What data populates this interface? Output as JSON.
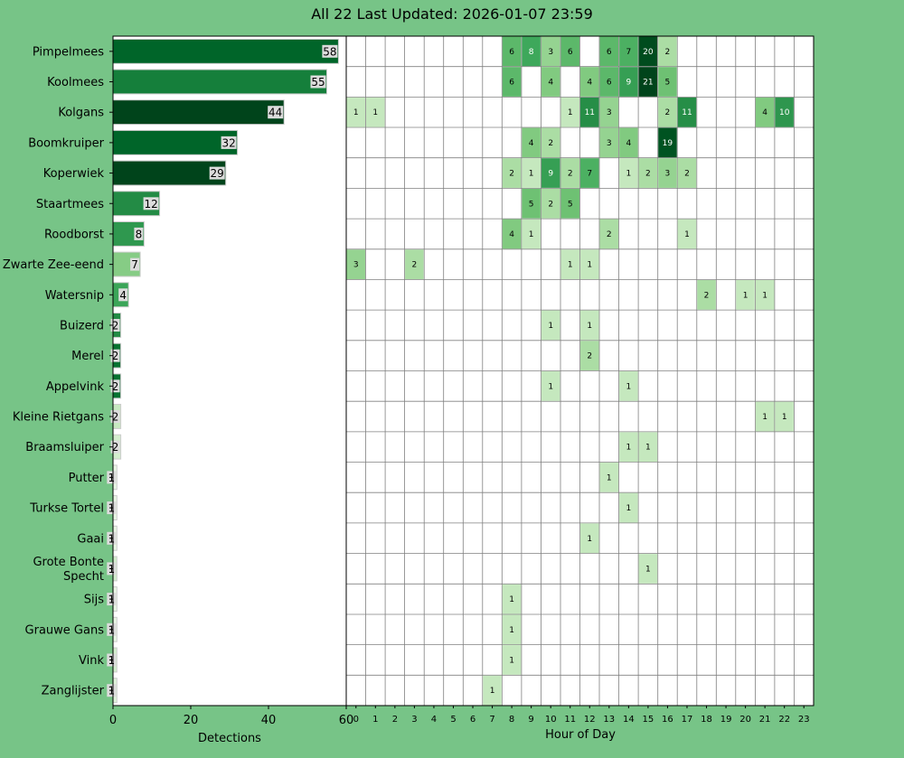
{
  "title": "All 22 Last Updated: 2026-01-07 23:59",
  "colors": {
    "background": "#77c487",
    "highlight_hour": "#ffff00",
    "grid": "#808080"
  },
  "chart_data": [
    {
      "type": "bar",
      "orientation": "horizontal",
      "categories": [
        "Pimpelmees",
        "Koolmees",
        "Kolgans",
        "Boomkruiper",
        "Koperwiek",
        "Staartmees",
        "Roodborst",
        "Zwarte Zee-eend",
        "Watersnip",
        "Buizerd",
        "Merel",
        "Appelvink",
        "Kleine Rietgans",
        "Braamsluiper",
        "Putter",
        "Turkse Tortel",
        "Gaai",
        "Grote Bonte\nSpecht",
        "Sijs",
        "Grauwe Gans",
        "Vink",
        "Zanglijster"
      ],
      "values": [
        58,
        55,
        44,
        32,
        29,
        12,
        8,
        7,
        4,
        2,
        2,
        2,
        2,
        2,
        1,
        1,
        1,
        1,
        1,
        1,
        1,
        1
      ],
      "xlabel": "Detections",
      "xlim": [
        0,
        60
      ],
      "xticks": [
        0,
        20,
        40,
        60
      ]
    },
    {
      "type": "heatmap",
      "xlabel": "Hour of Day",
      "x": [
        0,
        1,
        2,
        3,
        4,
        5,
        6,
        7,
        8,
        9,
        10,
        11,
        12,
        13,
        14,
        15,
        16,
        17,
        18,
        19,
        20,
        21,
        22,
        23
      ],
      "highlight_hour": 23,
      "rows": [
        {
          "species": "Pimpelmees",
          "cells": [
            [
              8,
              6
            ],
            [
              9,
              8
            ],
            [
              10,
              3
            ],
            [
              11,
              6
            ],
            [
              13,
              6
            ],
            [
              14,
              7
            ],
            [
              15,
              20
            ],
            [
              16,
              2
            ]
          ]
        },
        {
          "species": "Koolmees",
          "cells": [
            [
              8,
              6
            ],
            [
              10,
              4
            ],
            [
              12,
              4
            ],
            [
              13,
              6
            ],
            [
              14,
              9
            ],
            [
              15,
              21
            ],
            [
              16,
              5
            ]
          ]
        },
        {
          "species": "Kolgans",
          "cells": [
            [
              0,
              1
            ],
            [
              1,
              1
            ],
            [
              11,
              1
            ],
            [
              12,
              11
            ],
            [
              13,
              3
            ],
            [
              16,
              2
            ],
            [
              17,
              11
            ],
            [
              21,
              4
            ],
            [
              22,
              10
            ]
          ]
        },
        {
          "species": "Boomkruiper",
          "cells": [
            [
              9,
              4
            ],
            [
              10,
              2
            ],
            [
              13,
              3
            ],
            [
              14,
              4
            ],
            [
              16,
              19
            ]
          ]
        },
        {
          "species": "Koperwiek",
          "cells": [
            [
              8,
              2
            ],
            [
              9,
              1
            ],
            [
              10,
              9
            ],
            [
              11,
              2
            ],
            [
              12,
              7
            ],
            [
              14,
              1
            ],
            [
              15,
              2
            ],
            [
              16,
              3
            ],
            [
              17,
              2
            ]
          ]
        },
        {
          "species": "Staartmees",
          "cells": [
            [
              9,
              5
            ],
            [
              10,
              2
            ],
            [
              11,
              5
            ]
          ]
        },
        {
          "species": "Roodborst",
          "cells": [
            [
              8,
              4
            ],
            [
              9,
              1
            ],
            [
              13,
              2
            ],
            [
              17,
              1
            ]
          ]
        },
        {
          "species": "Zwarte Zee-eend",
          "cells": [
            [
              0,
              3
            ],
            [
              3,
              2
            ],
            [
              11,
              1
            ],
            [
              12,
              1
            ]
          ]
        },
        {
          "species": "Watersnip",
          "cells": [
            [
              18,
              2
            ],
            [
              20,
              1
            ],
            [
              21,
              1
            ]
          ]
        },
        {
          "species": "Buizerd",
          "cells": [
            [
              10,
              1
            ],
            [
              12,
              1
            ]
          ]
        },
        {
          "species": "Merel",
          "cells": [
            [
              12,
              2
            ]
          ]
        },
        {
          "species": "Appelvink",
          "cells": [
            [
              10,
              1
            ],
            [
              14,
              1
            ]
          ]
        },
        {
          "species": "Kleine Rietgans",
          "cells": [
            [
              21,
              1
            ],
            [
              22,
              1
            ]
          ]
        },
        {
          "species": "Braamsluiper",
          "cells": [
            [
              14,
              1
            ],
            [
              15,
              1
            ]
          ]
        },
        {
          "species": "Putter",
          "cells": [
            [
              13,
              1
            ]
          ]
        },
        {
          "species": "Turkse Tortel",
          "cells": [
            [
              14,
              1
            ]
          ]
        },
        {
          "species": "Gaai",
          "cells": [
            [
              12,
              1
            ]
          ]
        },
        {
          "species": "Grote Bonte Specht",
          "cells": [
            [
              15,
              1
            ]
          ]
        },
        {
          "species": "Sijs",
          "cells": [
            [
              8,
              1
            ]
          ]
        },
        {
          "species": "Grauwe Gans",
          "cells": [
            [
              8,
              1
            ]
          ]
        },
        {
          "species": "Vink",
          "cells": [
            [
              8,
              1
            ]
          ]
        },
        {
          "species": "Zanglijster",
          "cells": [
            [
              7,
              1
            ]
          ]
        }
      ]
    }
  ]
}
